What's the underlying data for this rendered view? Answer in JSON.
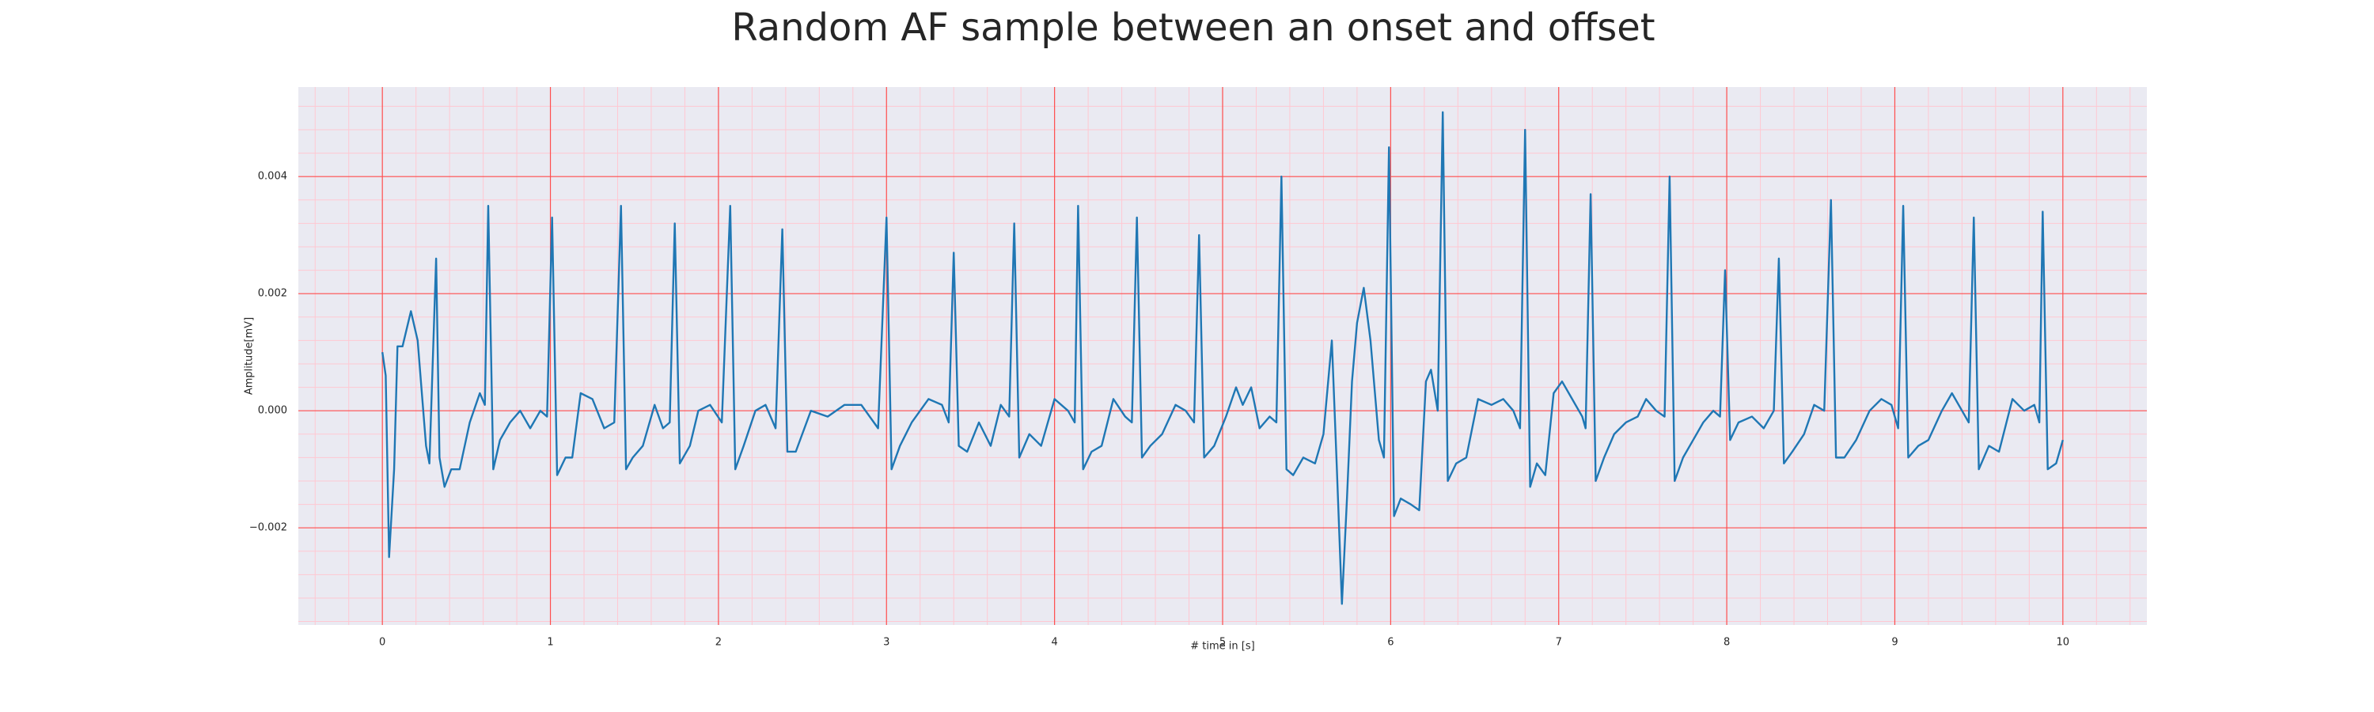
{
  "chart_data": {
    "type": "line",
    "title": "Random AF sample between an onset and offset",
    "xlabel": "# time in [s]",
    "ylabel": "Amplitude[mV]",
    "xlim": [
      -0.5,
      10.5
    ],
    "ylim": [
      -0.00366,
      0.00553
    ],
    "xticks": [
      0,
      1,
      2,
      3,
      4,
      5,
      6,
      7,
      8,
      9,
      10
    ],
    "yticks": [
      {
        "value": -0.002,
        "label": "−0.002"
      },
      {
        "value": 0,
        "label": "0.000"
      },
      {
        "value": 0.002,
        "label": "0.002"
      },
      {
        "value": 0.004,
        "label": "0.004"
      }
    ],
    "minor_xticks": [
      -0.4,
      -0.2,
      0.2,
      0.4,
      0.6,
      0.8,
      1.2,
      1.4,
      1.6,
      1.8,
      2.2,
      2.4,
      2.6,
      2.8,
      3.2,
      3.4,
      3.6,
      3.8,
      4.2,
      4.4,
      4.6,
      4.8,
      5.2,
      5.4,
      5.6,
      5.8,
      6.2,
      6.4,
      6.6,
      6.8,
      7.2,
      7.4,
      7.6,
      7.8,
      8.2,
      8.4,
      8.6,
      8.8,
      9.2,
      9.4,
      9.6,
      9.8,
      10.2,
      10.4
    ],
    "minor_yticks": [
      -0.0036,
      -0.0032,
      -0.0028,
      -0.0024,
      -0.0016,
      -0.0012,
      -0.0008,
      -0.0004,
      0.0004,
      0.0008,
      0.0012,
      0.0016,
      0.0024,
      0.0028,
      0.0032,
      0.0036,
      0.0044,
      0.0048,
      0.0052
    ],
    "grid": true,
    "background": "#eaeaf2",
    "grid_color": "#ff4d4d",
    "minor_grid_color": "#ffc8d2",
    "series": [
      {
        "color": "#1f77b4",
        "x": [
          0.0,
          0.02,
          0.04,
          0.07,
          0.09,
          0.12,
          0.17,
          0.21,
          0.26,
          0.28,
          0.32,
          0.34,
          0.37,
          0.41,
          0.46,
          0.52,
          0.58,
          0.61,
          0.63,
          0.66,
          0.7,
          0.76,
          0.82,
          0.88,
          0.94,
          0.98,
          1.01,
          1.04,
          1.09,
          1.13,
          1.18,
          1.25,
          1.32,
          1.38,
          1.42,
          1.45,
          1.49,
          1.55,
          1.62,
          1.67,
          1.71,
          1.74,
          1.77,
          1.83,
          1.88,
          1.95,
          2.02,
          2.07,
          2.1,
          2.15,
          2.22,
          2.28,
          2.34,
          2.38,
          2.41,
          2.46,
          2.55,
          2.65,
          2.75,
          2.85,
          2.95,
          3.0,
          3.03,
          3.08,
          3.15,
          3.25,
          3.33,
          3.37,
          3.4,
          3.43,
          3.48,
          3.55,
          3.62,
          3.68,
          3.73,
          3.76,
          3.79,
          3.85,
          3.92,
          4.0,
          4.08,
          4.12,
          4.14,
          4.17,
          4.22,
          4.28,
          4.35,
          4.42,
          4.46,
          4.49,
          4.52,
          4.57,
          4.64,
          4.72,
          4.78,
          4.83,
          4.86,
          4.89,
          4.95,
          5.02,
          5.08,
          5.12,
          5.17,
          5.22,
          5.28,
          5.32,
          5.35,
          5.38,
          5.42,
          5.48,
          5.55,
          5.6,
          5.65,
          5.68,
          5.71,
          5.74,
          5.77,
          5.8,
          5.84,
          5.88,
          5.93,
          5.96,
          5.99,
          6.02,
          6.06,
          6.12,
          6.17,
          6.21,
          6.24,
          6.28,
          6.31,
          6.34,
          6.39,
          6.45,
          6.52,
          6.6,
          6.67,
          6.73,
          6.77,
          6.8,
          6.83,
          6.87,
          6.92,
          6.97,
          7.02,
          7.08,
          7.14,
          7.16,
          7.19,
          7.22,
          7.27,
          7.33,
          7.4,
          7.47,
          7.52,
          7.58,
          7.63,
          7.66,
          7.69,
          7.74,
          7.8,
          7.86,
          7.92,
          7.96,
          7.99,
          8.02,
          8.07,
          8.15,
          8.22,
          8.28,
          8.31,
          8.34,
          8.39,
          8.46,
          8.52,
          8.58,
          8.62,
          8.65,
          8.7,
          8.77,
          8.85,
          8.92,
          8.98,
          9.02,
          9.05,
          9.08,
          9.14,
          9.2,
          9.28,
          9.34,
          9.4,
          9.44,
          9.47,
          9.5,
          9.56,
          9.62,
          9.7,
          9.77,
          9.83,
          9.86,
          9.88,
          9.91,
          9.96,
          10.0
        ],
        "values": [
          0.001,
          0.0006,
          -0.0025,
          -0.001,
          0.0011,
          0.0011,
          0.0017,
          0.0012,
          -0.0006,
          -0.0009,
          0.0026,
          -0.0008,
          -0.0013,
          -0.001,
          -0.001,
          -0.0002,
          0.0003,
          0.0001,
          0.0035,
          -0.001,
          -0.0005,
          -0.0002,
          0.0,
          -0.0003,
          0.0,
          -0.0001,
          0.0033,
          -0.0011,
          -0.0008,
          -0.0008,
          0.0003,
          0.0002,
          -0.0003,
          -0.0002,
          0.0035,
          -0.001,
          -0.0008,
          -0.0006,
          0.0001,
          -0.0003,
          -0.0002,
          0.0032,
          -0.0009,
          -0.0006,
          0.0,
          0.0001,
          -0.0002,
          0.0035,
          -0.001,
          -0.0006,
          0.0,
          0.0001,
          -0.0003,
          0.0031,
          -0.0007,
          -0.0007,
          0.0,
          -0.0001,
          0.0001,
          0.0001,
          -0.0003,
          0.0033,
          -0.001,
          -0.0006,
          -0.0002,
          0.0002,
          0.0001,
          -0.0002,
          0.0027,
          -0.0006,
          -0.0007,
          -0.0002,
          -0.0006,
          0.0001,
          -0.0001,
          0.0032,
          -0.0008,
          -0.0004,
          -0.0006,
          0.0002,
          0.0,
          -0.0002,
          0.0035,
          -0.001,
          -0.0007,
          -0.0006,
          0.0002,
          -0.0001,
          -0.0002,
          0.0033,
          -0.0008,
          -0.0006,
          -0.0004,
          0.0001,
          0.0,
          -0.0002,
          0.003,
          -0.0008,
          -0.0006,
          -0.0001,
          0.0004,
          0.0001,
          0.0004,
          -0.0003,
          -0.0001,
          -0.0002,
          0.004,
          -0.001,
          -0.0011,
          -0.0008,
          -0.0009,
          -0.0004,
          0.0012,
          -0.001,
          -0.0033,
          -0.0015,
          0.0005,
          0.0015,
          0.0021,
          0.0012,
          -0.0005,
          -0.0008,
          0.0045,
          -0.0018,
          -0.0015,
          -0.0016,
          -0.0017,
          0.0005,
          0.0007,
          0.0,
          0.0051,
          -0.0012,
          -0.0009,
          -0.0008,
          0.0002,
          0.0001,
          0.0002,
          0.0,
          -0.0003,
          0.0048,
          -0.0013,
          -0.0009,
          -0.0011,
          0.0003,
          0.0005,
          0.0002,
          -0.0001,
          -0.0003,
          0.0037,
          -0.0012,
          -0.0008,
          -0.0004,
          -0.0002,
          -0.0001,
          0.0002,
          0.0,
          -0.0001,
          0.004,
          -0.0012,
          -0.0008,
          -0.0005,
          -0.0002,
          0.0,
          -0.0001,
          0.0024,
          -0.0005,
          -0.0002,
          -0.0001,
          -0.0003,
          0.0,
          0.0026,
          -0.0009,
          -0.0007,
          -0.0004,
          0.0001,
          0.0,
          0.0036,
          -0.0008,
          -0.0008,
          -0.0005,
          0.0,
          0.0002,
          0.0001,
          -0.0003,
          0.0035,
          -0.0008,
          -0.0006,
          -0.0005,
          0.0,
          0.0003,
          0.0,
          -0.0002,
          0.0033,
          -0.001,
          -0.0006,
          -0.0007,
          0.0002,
          0.0,
          0.0001,
          -0.0002,
          0.0034,
          -0.001,
          -0.0009,
          -0.0005
        ]
      }
    ]
  }
}
